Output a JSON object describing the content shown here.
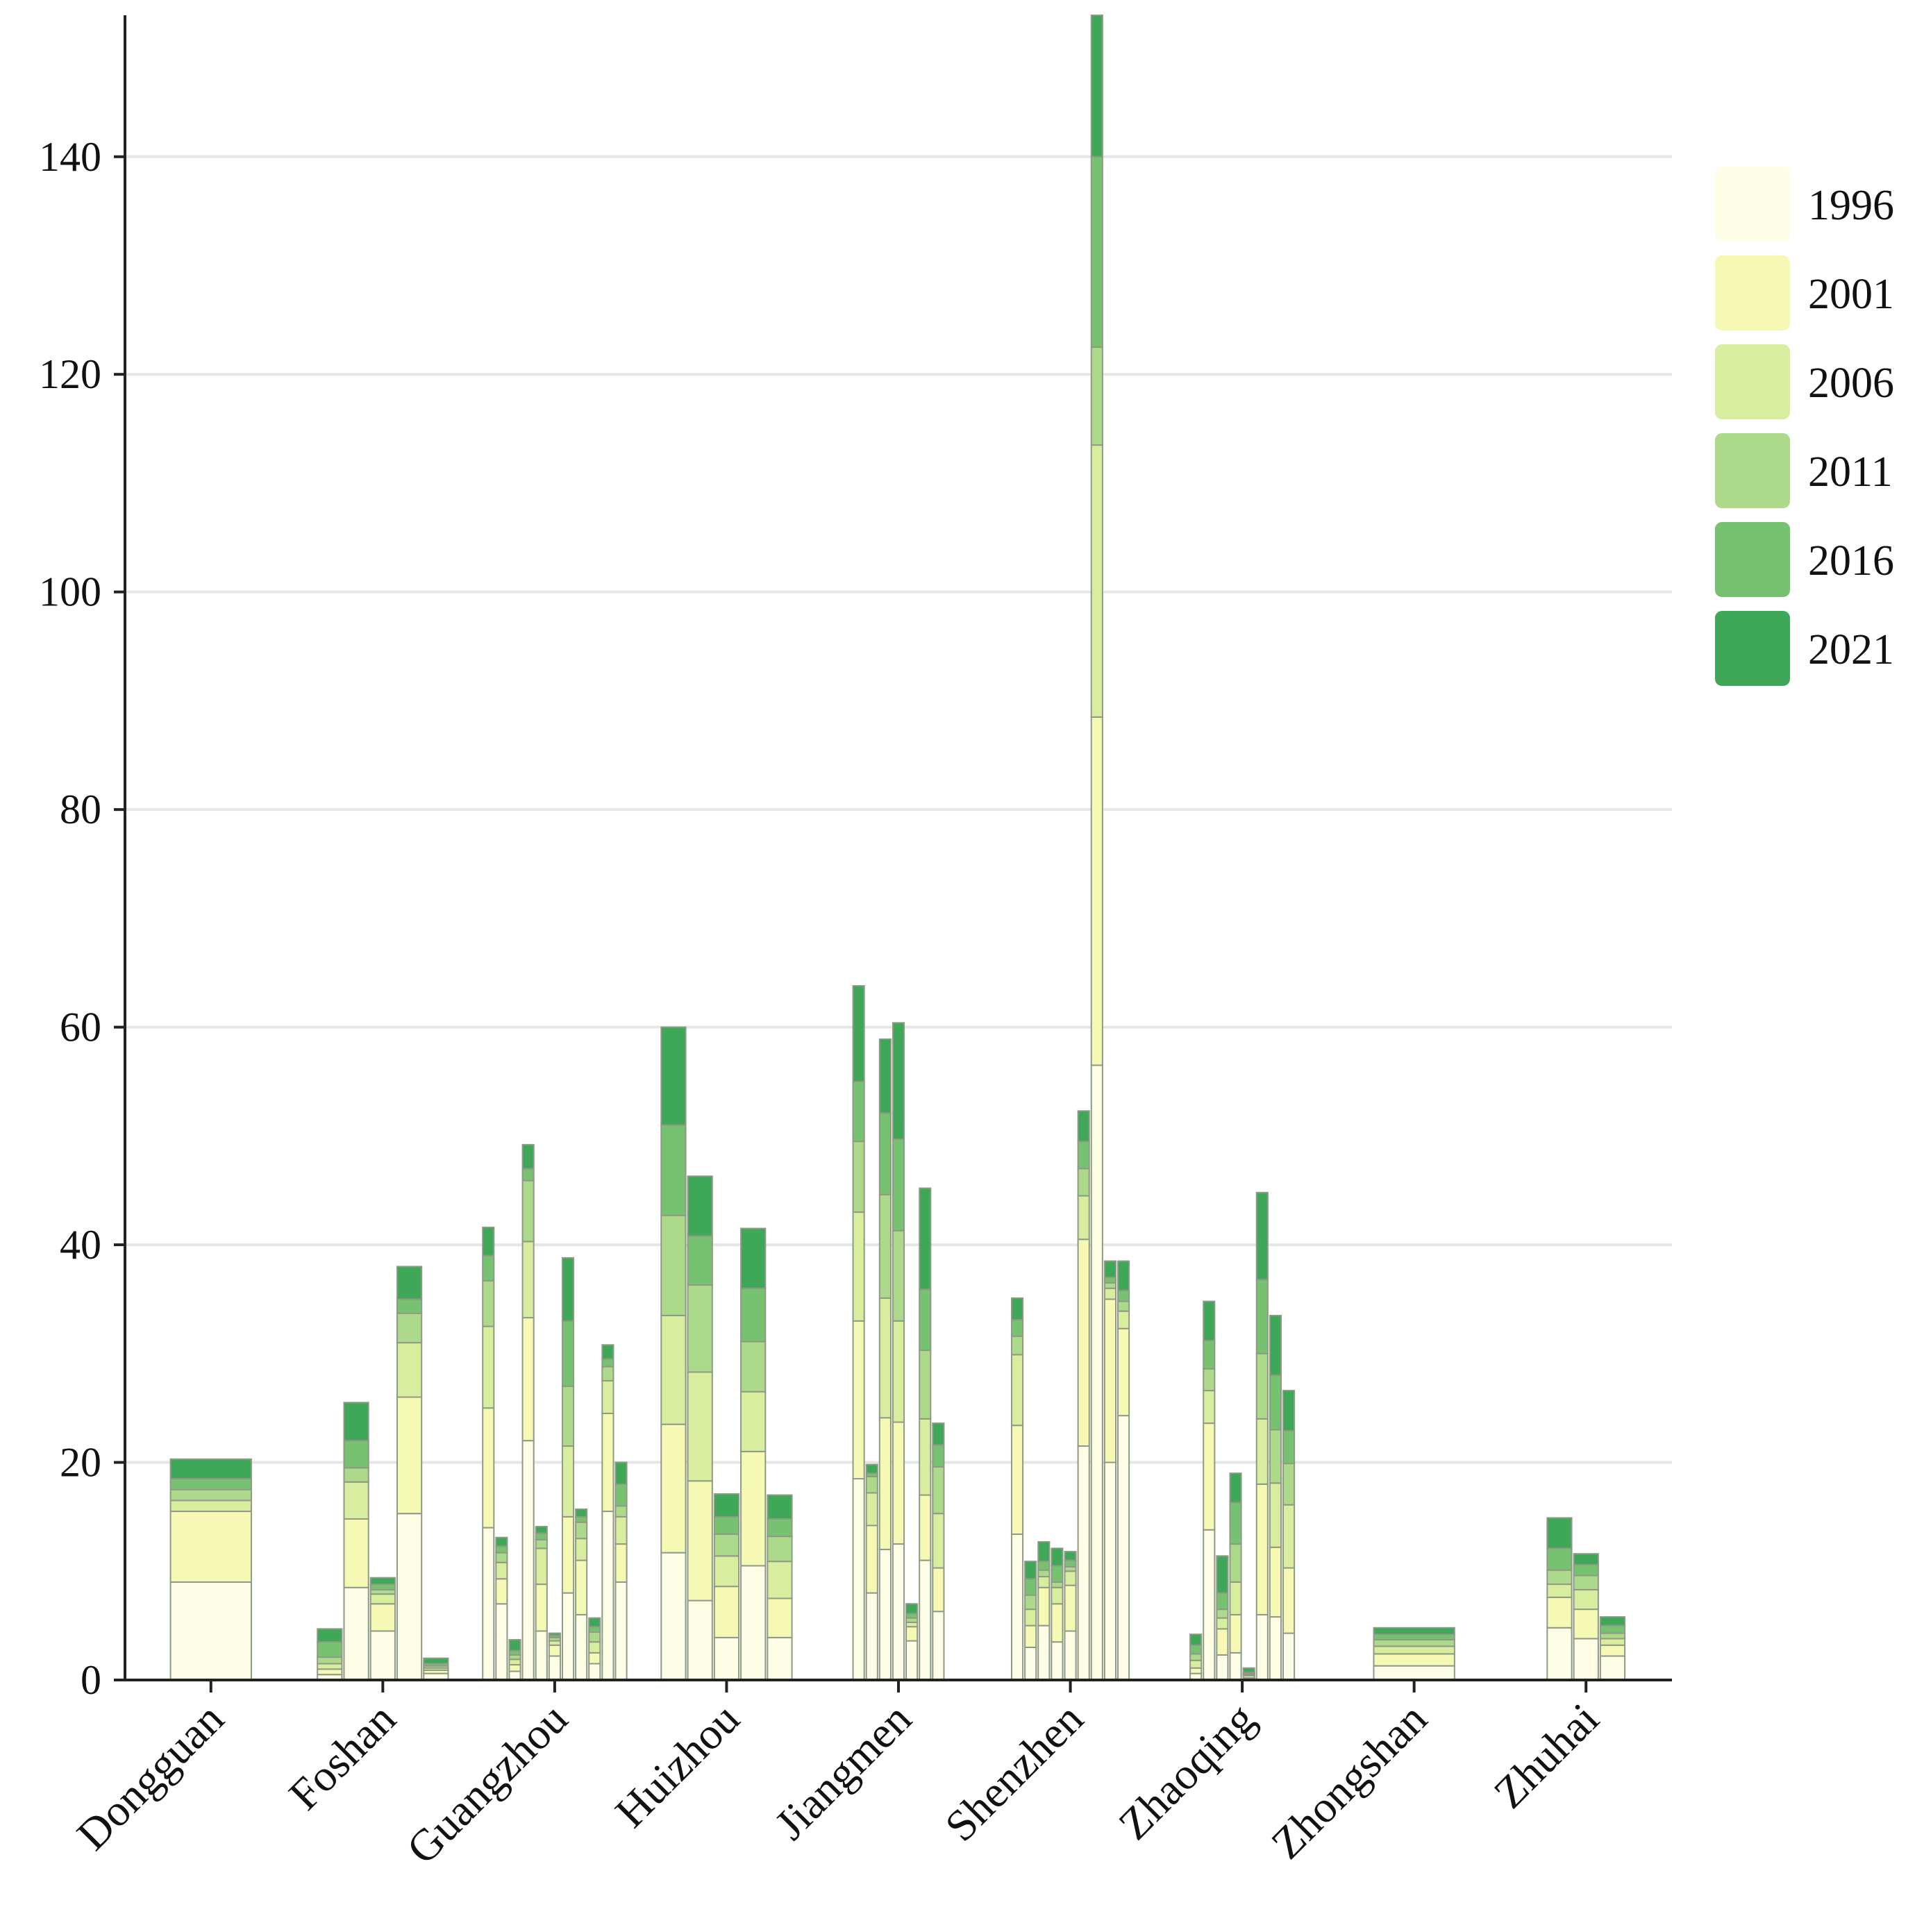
{
  "chart_data": {
    "type": "bar",
    "stacked": true,
    "title": "",
    "xlabel": "",
    "ylabel": "",
    "ylim": [
      0,
      153
    ],
    "yticks": [
      0,
      20,
      40,
      60,
      80,
      100,
      120,
      140
    ],
    "grid": true,
    "legend_position": "top-right",
    "series": [
      {
        "name": "1996",
        "color": "#fefde6"
      },
      {
        "name": "2001",
        "color": "#f5f9b4"
      },
      {
        "name": "2006",
        "color": "#d9ed9f"
      },
      {
        "name": "2011",
        "color": "#acd98a"
      },
      {
        "name": "2016",
        "color": "#77c271"
      },
      {
        "name": "2021",
        "color": "#3fa758"
      }
    ],
    "categories": [
      {
        "name": "Dongguan",
        "bars": [
          {
            "values": [
              9,
              6.5,
              1,
              1,
              1,
              1.8
            ]
          }
        ]
      },
      {
        "name": "Foshan",
        "bars": [
          {
            "values": [
              0.5,
              0.5,
              0.5,
              0.6,
              1.4,
              1.2
            ]
          },
          {
            "values": [
              8.5,
              6.3,
              3.4,
              1.3,
              2.5,
              3.5
            ]
          },
          {
            "values": [
              4.5,
              2.5,
              0.9,
              0.4,
              0.5,
              0.6
            ]
          },
          {
            "values": [
              15.3,
              10.7,
              5,
              2.7,
              1.3,
              3
            ]
          },
          {
            "values": [
              0.6,
              0.3,
              0.2,
              0.2,
              0.2,
              0.5
            ]
          }
        ]
      },
      {
        "name": "Guangzhou",
        "bars": [
          {
            "values": [
              14,
              11,
              7.5,
              4.2,
              2.3,
              2.6
            ]
          },
          {
            "values": [
              7,
              2.3,
              1.5,
              0.9,
              0.6,
              0.8
            ]
          },
          {
            "values": [
              0.8,
              0.6,
              0.5,
              0.4,
              0.4,
              1
            ]
          },
          {
            "values": [
              22,
              11.3,
              7,
              5.6,
              1.1,
              2.2
            ]
          },
          {
            "values": [
              4.5,
              4.3,
              3.3,
              0.8,
              0.6,
              0.6
            ]
          },
          {
            "values": [
              2.2,
              1,
              0.4,
              0.3,
              0.2,
              0.2
            ]
          },
          {
            "values": [
              8,
              7,
              6.5,
              5.5,
              6,
              5.8
            ]
          },
          {
            "values": [
              6,
              5,
              2,
              1.5,
              0.5,
              0.7
            ]
          },
          {
            "values": [
              1.5,
              1,
              1,
              0.9,
              0.5,
              0.8
            ]
          },
          {
            "values": [
              15.5,
              9,
              3,
              1.3,
              0.7,
              1.3
            ]
          },
          {
            "values": [
              9,
              3.5,
              2.5,
              1,
              2,
              2
            ]
          }
        ]
      },
      {
        "name": "Huizhou",
        "bars": [
          {
            "values": [
              11.7,
              11.8,
              10,
              9.2,
              8.3,
              9
            ]
          },
          {
            "values": [
              7.3,
              11,
              10,
              8,
              4.5,
              5.5
            ]
          },
          {
            "values": [
              3.9,
              4.7,
              2.8,
              2,
              1.6,
              2.1
            ]
          },
          {
            "values": [
              10.5,
              10.5,
              5.5,
              4.6,
              4.9,
              5.5
            ]
          },
          {
            "values": [
              3.9,
              3.6,
              3.4,
              2.3,
              1.6,
              2.2
            ]
          }
        ]
      },
      {
        "name": "Jiangmen",
        "bars": [
          {
            "values": [
              18.5,
              14.5,
              10,
              6.5,
              5.5,
              8.8
            ]
          },
          {
            "values": [
              8,
              6.2,
              3,
              1.5,
              0.3,
              0.8
            ]
          },
          {
            "values": [
              12,
              12.1,
              11,
              9.5,
              7.5,
              6.8
            ]
          },
          {
            "values": [
              12.5,
              11.2,
              9.3,
              8.3,
              8.4,
              10.7
            ]
          },
          {
            "values": [
              3.6,
              1.3,
              0.4,
              0.4,
              0.4,
              0.9
            ]
          },
          {
            "values": [
              11,
              6,
              7,
              6.3,
              5.6,
              9.3
            ]
          },
          {
            "values": [
              6.3,
              4,
              5,
              4.3,
              2,
              2
            ]
          }
        ]
      },
      {
        "name": "Shenzhen",
        "bars": [
          {
            "values": [
              13.4,
              10,
              6.5,
              1.7,
              1.5,
              2
            ]
          },
          {
            "values": [
              3,
              2,
              1.5,
              1.3,
              1.5,
              1.6
            ]
          },
          {
            "values": [
              5,
              3.5,
              1,
              0.6,
              0.8,
              1.8
            ]
          },
          {
            "values": [
              3.5,
              3.5,
              1.5,
              0.5,
              1.5,
              1.6
            ]
          },
          {
            "values": [
              4.5,
              4.2,
              1.3,
              0.4,
              0.6,
              0.8
            ]
          },
          {
            "values": [
              21.5,
              19,
              4,
              2.5,
              2.5,
              2.8
            ]
          },
          {
            "values": [
              56.5,
              32,
              25,
              9,
              17.5,
              13
            ]
          },
          {
            "values": [
              20,
              15,
              1,
              0.5,
              0.5,
              1.5
            ]
          },
          {
            "values": [
              24.3,
              8,
              1.6,
              0.9,
              1,
              2.7
            ]
          }
        ]
      },
      {
        "name": "Zhaoqing",
        "bars": [
          {
            "values": [
              0.6,
              0.5,
              0.7,
              0.6,
              0.8,
              1
            ]
          },
          {
            "values": [
              13.8,
              9.8,
              3,
              2,
              2.6,
              3.6
            ]
          },
          {
            "values": [
              2.3,
              2.4,
              1,
              0.8,
              1.5,
              3.4
            ]
          },
          {
            "values": [
              2.5,
              3.5,
              3,
              3.5,
              3.8,
              2.7
            ]
          },
          {
            "values": [
              0.2,
              0.2,
              0.1,
              0.1,
              0.1,
              0.4
            ]
          },
          {
            "values": [
              6,
              12,
              6,
              6,
              6.8,
              8
            ]
          },
          {
            "values": [
              5.8,
              6.4,
              5.9,
              4.9,
              5,
              5.5
            ]
          },
          {
            "values": [
              4.3,
              6,
              5.8,
              3.8,
              3,
              3.7
            ]
          }
        ]
      },
      {
        "name": "Zhongshan",
        "bars": [
          {
            "values": [
              1.3,
              1.1,
              0.7,
              0.6,
              0.5,
              0.6
            ]
          }
        ]
      },
      {
        "name": "Zhuhai",
        "bars": [
          {
            "values": [
              4.8,
              2.8,
              1.2,
              1.3,
              2,
              2.8
            ]
          },
          {
            "values": [
              3.8,
              2.7,
              1.8,
              1.3,
              1,
              1
            ]
          },
          {
            "values": [
              2.2,
              1,
              0.6,
              0.5,
              0.7,
              0.8
            ]
          }
        ]
      }
    ]
  }
}
